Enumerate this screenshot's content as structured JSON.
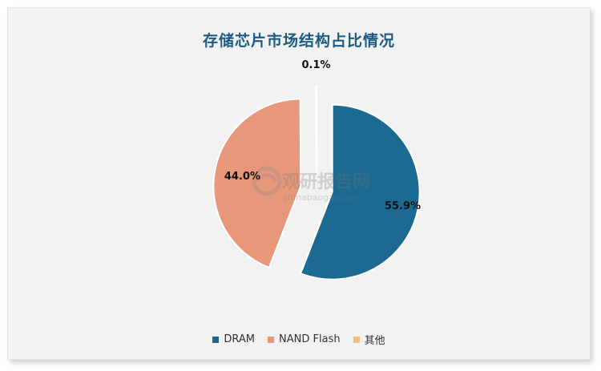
{
  "chart_data": {
    "type": "pie",
    "title": "存储芯片市场结构占比情况",
    "series": [
      {
        "name": "DRAM",
        "value": 55.9,
        "label": "55.9%",
        "color": "#1c6a91"
      },
      {
        "name": "NAND Flash",
        "value": 44.0,
        "label": "44.0%",
        "color": "#e8987a"
      },
      {
        "name": "其他",
        "value": 0.1,
        "label": "0.1%",
        "color": "#f5c07a"
      }
    ],
    "legend_position": "bottom",
    "exploded": true
  },
  "watermark": {
    "brand": "观研报告网",
    "url": "chinabaogao.com"
  }
}
